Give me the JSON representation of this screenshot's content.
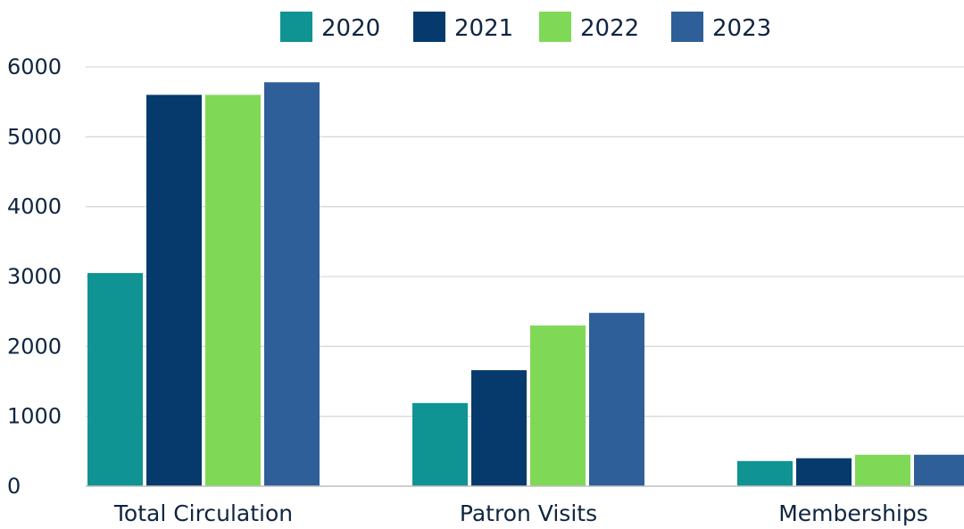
{
  "chart_data": {
    "type": "bar",
    "title": "",
    "xlabel": "",
    "ylabel": "",
    "categories": [
      "Total Circulation",
      "Patron Visits",
      "Memberships"
    ],
    "series": [
      {
        "name": "2020",
        "color": "#0f9393",
        "values": [
          3050,
          1190,
          360
        ]
      },
      {
        "name": "2021",
        "color": "#063a6c",
        "values": [
          5600,
          1660,
          400
        ]
      },
      {
        "name": "2022",
        "color": "#7fd957",
        "values": [
          5600,
          2300,
          450
        ]
      },
      {
        "name": "2023",
        "color": "#2f5f98",
        "values": [
          5780,
          2480,
          450
        ]
      }
    ],
    "ylim": [
      0,
      6000
    ],
    "yticks": [
      "0",
      "1000",
      "2000",
      "3000",
      "4000",
      "5000",
      "6000"
    ],
    "grid": true,
    "legend_position": "top-center"
  }
}
